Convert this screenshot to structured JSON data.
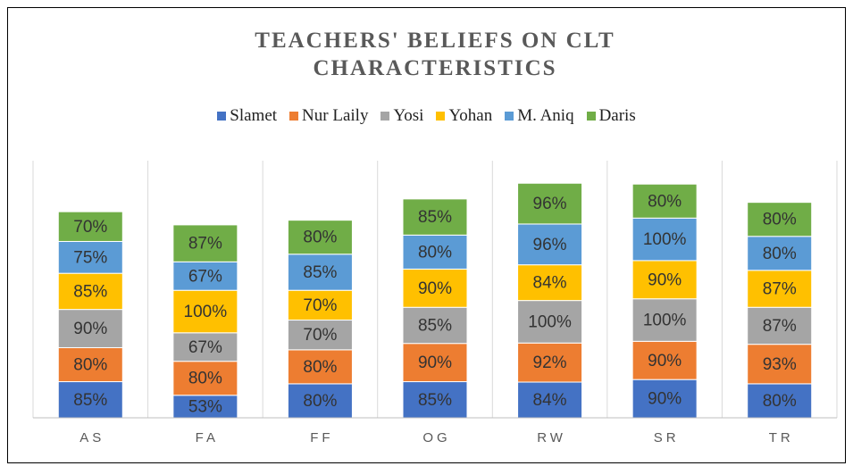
{
  "chart_data": {
    "type": "stacked_bar",
    "title": "TEACHERS' BELIEFS ON CLT CHARACTERISTICS",
    "categories": [
      "AS",
      "FA",
      "FF",
      "OG",
      "RW",
      "SR",
      "TR"
    ],
    "series": [
      {
        "name": "Slamet",
        "color": "#4472c4",
        "values": [
          85,
          53,
          80,
          85,
          84,
          90,
          80
        ],
        "value_labels": [
          "85%",
          "53%",
          "80%",
          "85%",
          "84%",
          "90%",
          "80%"
        ]
      },
      {
        "name": "Nur Laily",
        "color": "#ed7d31",
        "values": [
          80,
          80,
          80,
          90,
          92,
          90,
          93
        ],
        "value_labels": [
          "80%",
          "80%",
          "80%",
          "90%",
          "92%",
          "90%",
          "93%"
        ]
      },
      {
        "name": "Yosi",
        "color": "#a5a5a5",
        "values": [
          90,
          67,
          70,
          85,
          100,
          100,
          87
        ],
        "value_labels": [
          "90%",
          "67%",
          "70%",
          "85%",
          "100%",
          "100%",
          "87%"
        ]
      },
      {
        "name": "Yohan",
        "color": "#ffc000",
        "values": [
          85,
          100,
          70,
          90,
          84,
          90,
          87
        ],
        "value_labels": [
          "85%",
          "100%",
          "70%",
          "90%",
          "84%",
          "90%",
          "87%"
        ]
      },
      {
        "name": "M. Aniq",
        "color": "#5b9bd5",
        "values": [
          75,
          67,
          85,
          80,
          96,
          100,
          80
        ],
        "value_labels": [
          "75%",
          "67%",
          "85%",
          "80%",
          "96%",
          "100%",
          "80%"
        ]
      },
      {
        "name": "Daris",
        "color": "#70ad47",
        "values": [
          70,
          87,
          80,
          85,
          96,
          80,
          80
        ],
        "value_labels": [
          "70%",
          "87%",
          "80%",
          "85%",
          "96%",
          "80%",
          "80%"
        ]
      }
    ],
    "legend": "top"
  }
}
